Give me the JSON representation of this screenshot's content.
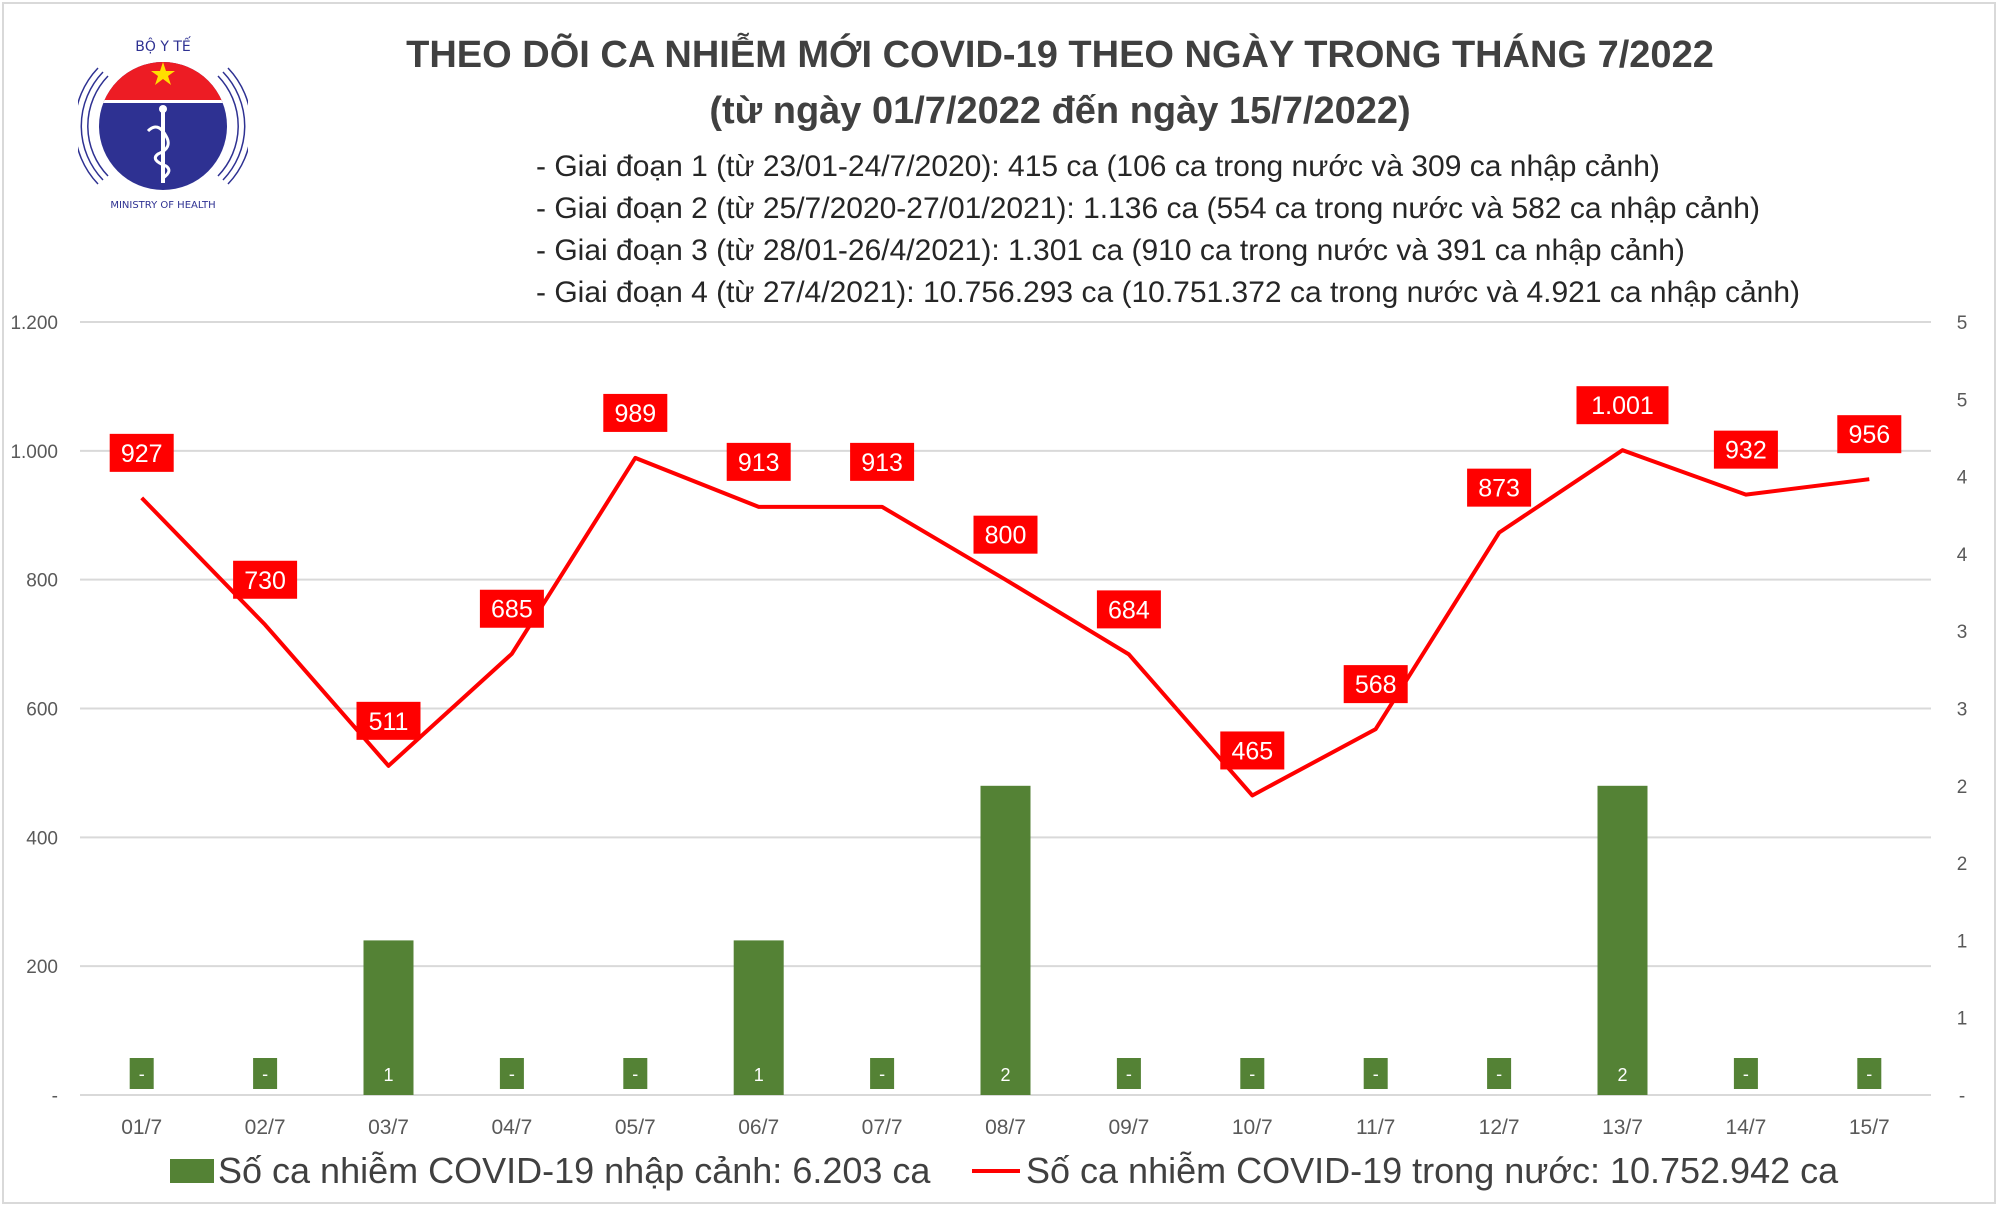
{
  "logo": {
    "top_text": "BỘ Y TẾ",
    "bottom_text": "MINISTRY OF HEALTH"
  },
  "title": "THEO DÕI CA NHIỄM MỚI COVID-19 THEO NGÀY TRONG THÁNG 7/2022",
  "subtitle": "(từ ngày 01/7/2022 đến ngày 15/7/2022)",
  "notes": [
    "- Giai đoạn 1 (từ 23/01-24/7/2020): 415 ca (106 ca trong nước và 309 ca nhập cảnh)",
    "- Giai đoạn 2 (từ 25/7/2020-27/01/2021): 1.136 ca (554 ca trong nước và 582 ca nhập cảnh)",
    "- Giai đoạn 3 (từ 28/01-26/4/2021): 1.301 ca (910 ca trong nước và 391 ca nhập cảnh)",
    "- Giai đoạn 4 (từ 27/4/2021): 10.756.293 ca (10.751.372 ca trong nước và 4.921 ca nhập cảnh)"
  ],
  "chart_data": {
    "type": "bar+line",
    "categories": [
      "01/7",
      "02/7",
      "03/7",
      "04/7",
      "05/7",
      "06/7",
      "07/7",
      "08/7",
      "09/7",
      "10/7",
      "11/7",
      "12/7",
      "13/7",
      "14/7",
      "15/7"
    ],
    "series": [
      {
        "name": "Số ca nhiễm COVID-19 nhập cảnh: 6.203 ca",
        "type": "bar",
        "axis": "right",
        "color": "#548235",
        "values": [
          0,
          0,
          1,
          0,
          0,
          1,
          0,
          2,
          0,
          0,
          0,
          0,
          2,
          0,
          0
        ],
        "labels": [
          "-",
          "-",
          "1",
          "-",
          "-",
          "1",
          "-",
          "2",
          "-",
          "-",
          "-",
          "-",
          "2",
          "-",
          "-"
        ]
      },
      {
        "name": "Số ca nhiễm COVID-19 trong nước: 10.752.942 ca",
        "type": "line",
        "axis": "left",
        "color": "#ff0000",
        "values": [
          927,
          730,
          511,
          685,
          989,
          913,
          913,
          800,
          684,
          465,
          568,
          873,
          1001,
          932,
          956
        ],
        "labels": [
          "927",
          "730",
          "511",
          "685",
          "989",
          "913",
          "913",
          "800",
          "684",
          "465",
          "568",
          "873",
          "1.001",
          "932",
          "956"
        ]
      }
    ],
    "left_axis": {
      "range": [
        0,
        1200
      ],
      "ticks": [
        "-",
        "200",
        "400",
        "600",
        "800",
        "1.000",
        "1.200"
      ]
    },
    "right_axis": {
      "range": [
        0,
        5
      ],
      "ticks": [
        "-",
        "1",
        "1",
        "2",
        "2",
        "3",
        "3",
        "4",
        "4",
        "5",
        "5"
      ]
    },
    "grid": true,
    "legend": "bottom"
  }
}
